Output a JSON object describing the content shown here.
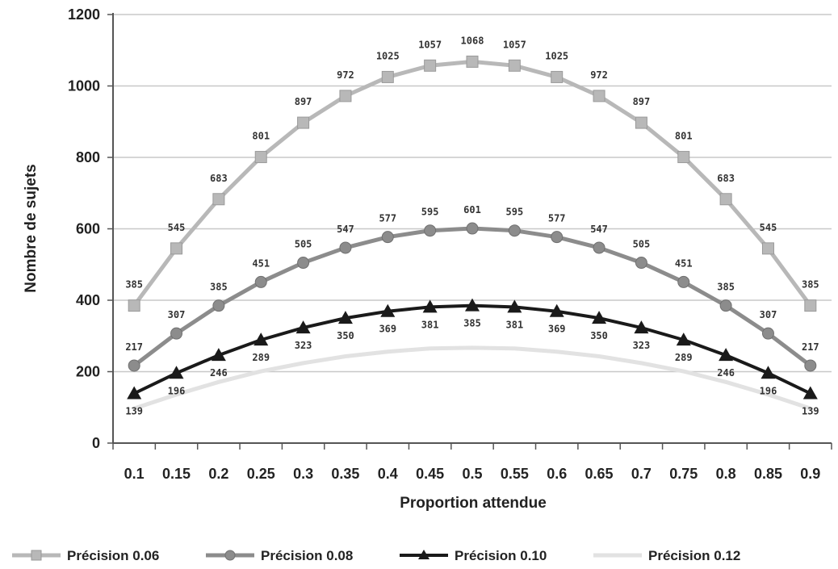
{
  "chart_data": {
    "type": "line",
    "xlabel": "Proportion attendue",
    "ylabel": "Nombre de sujets",
    "ylim": [
      0,
      1200
    ],
    "yticks": [
      "0",
      "200",
      "400",
      "600",
      "800",
      "1000",
      "1200"
    ],
    "categories": [
      "0.1",
      "0.15",
      "0.2",
      "0.25",
      "0.3",
      "0.35",
      "0.4",
      "0.45",
      "0.5",
      "0.55",
      "0.6",
      "0.65",
      "0.7",
      "0.75",
      "0.8",
      "0.85",
      "0.9"
    ],
    "grid": "horizontal",
    "legend_position": "bottom",
    "series": [
      {
        "name": "Précision 0.06",
        "color": "#b8b8b8",
        "marker": "square",
        "values": [
          385,
          545,
          683,
          801,
          897,
          972,
          1025,
          1057,
          1068,
          1057,
          1025,
          972,
          897,
          801,
          683,
          545,
          385
        ],
        "labels": [
          "385",
          "545",
          "683",
          "801",
          "897",
          "972",
          "1025",
          "1057",
          "1068",
          "1057",
          "1025",
          "972",
          "897",
          "801",
          "683",
          "545",
          "385"
        ]
      },
      {
        "name": "Précision 0.08",
        "color": "#8c8c8c",
        "marker": "circle",
        "values": [
          217,
          307,
          385,
          451,
          505,
          547,
          577,
          595,
          601,
          595,
          577,
          547,
          505,
          451,
          385,
          307,
          217
        ],
        "labels": [
          "217",
          "307",
          "385",
          "451",
          "505",
          "547",
          "577",
          "595",
          "601",
          "595",
          "577",
          "547",
          "505",
          "451",
          "385",
          "307",
          "217"
        ]
      },
      {
        "name": "Précision 0.10",
        "color": "#1a1a1a",
        "marker": "triangle",
        "values": [
          139,
          196,
          246,
          289,
          323,
          350,
          369,
          381,
          385,
          381,
          369,
          350,
          323,
          289,
          246,
          196,
          139
        ],
        "labels": [
          "139",
          "196",
          "246",
          "289",
          "323",
          "350",
          "369",
          "381",
          "385",
          "381",
          "369",
          "350",
          "323",
          "289",
          "246",
          "196",
          "139"
        ]
      },
      {
        "name": "Précision 0.12",
        "color": "#e2e2e2",
        "marker": "none",
        "values": [
          97,
          136,
          171,
          201,
          224,
          243,
          256,
          265,
          267,
          265,
          256,
          243,
          224,
          201,
          171,
          136,
          97
        ],
        "labels": []
      }
    ]
  }
}
